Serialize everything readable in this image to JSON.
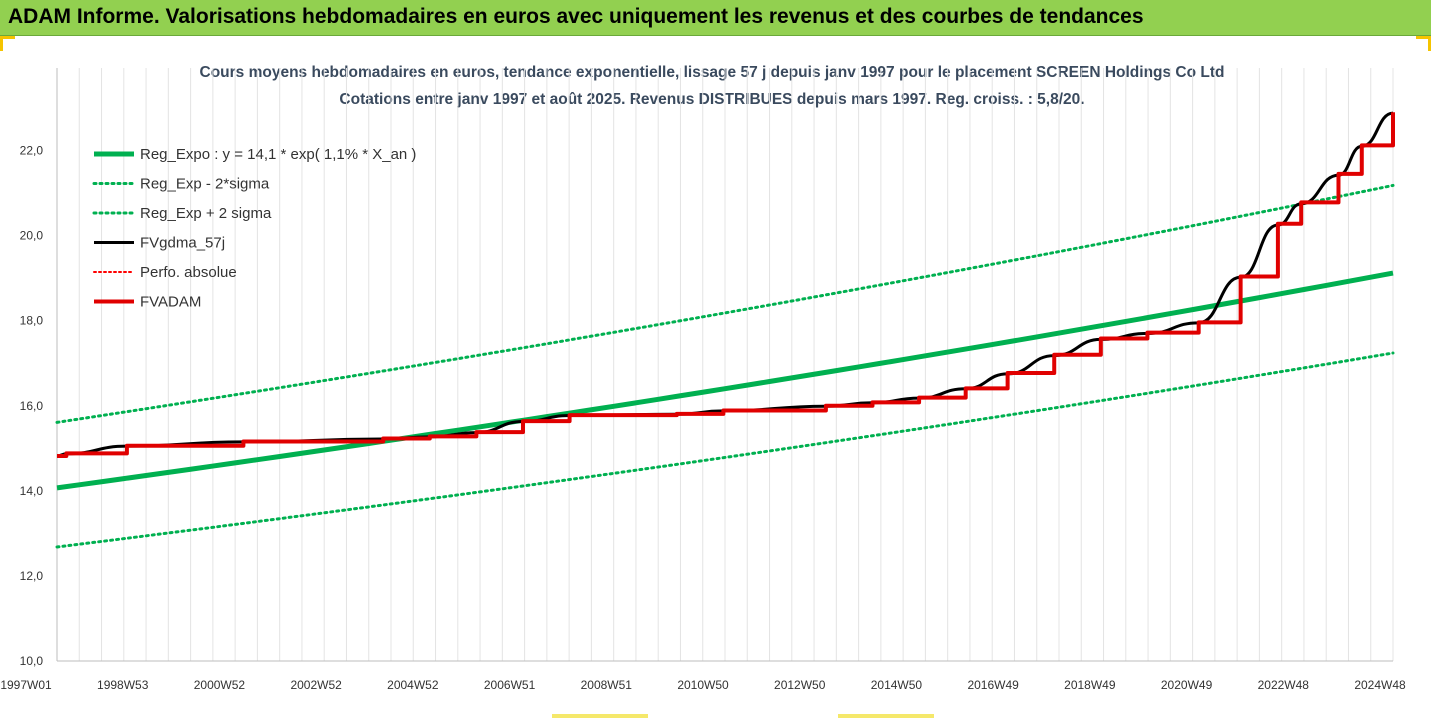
{
  "header": {
    "title": "ADAM Informe. Valorisations hebdomadaires en euros avec uniquement les revenus et des courbes de tendances"
  },
  "chart_data": {
    "type": "line",
    "title": "Cours moyens hebdomadaires en euros, tendance exponentielle, lissage 57 j depuis janv 1997 pour le placement SCREEN Holdings Co Ltd",
    "subtitle": "Cotations entre janv 1997 et août 2025.  Revenus DISTRIBUES depuis mars 1997. Reg. croiss. : 5,8/20.",
    "xlabel": "",
    "ylabel": "",
    "ylim": [
      10,
      23
    ],
    "xlim": [
      1997.0,
      2025.67
    ],
    "grid": {
      "horizontal": false,
      "vertical": true
    },
    "legend_position": "top-left",
    "y_ticks": [
      "10,0",
      "12,0",
      "14,0",
      "16,0",
      "18,0",
      "20,0",
      "22,0"
    ],
    "x_ticks": [
      "1997W01",
      "1998W53",
      "2000W52",
      "2002W52",
      "2004W52",
      "2006W51",
      "2008W51",
      "2010W50",
      "2012W50",
      "2014W50",
      "2016W49",
      "2018W49",
      "2020W49",
      "2022W48",
      "2024W48"
    ],
    "series": [
      {
        "name": "Reg_Expo : y = 14,1 * exp( 1,1% *  X_an )",
        "color": "#00b050",
        "style": "solid",
        "x": [
          1997.0,
          2025.67
        ],
        "values": [
          14.07,
          19.12
        ]
      },
      {
        "name": "Reg_Exp - 2*sigma",
        "color": "#00b050",
        "style": "dotted",
        "x": [
          1997.0,
          2025.67
        ],
        "values": [
          12.68,
          17.24
        ]
      },
      {
        "name": "Reg_Exp + 2 sigma",
        "color": "#00b050",
        "style": "dotted",
        "x": [
          1997.0,
          2025.67
        ],
        "values": [
          15.61,
          21.18
        ]
      },
      {
        "name": "FVgdma_57j",
        "color": "#000000",
        "style": "smooth",
        "x": [
          1997.0,
          1997.2,
          1998.5,
          2001.0,
          2004.0,
          2005.0,
          2006.0,
          2007.0,
          2008.0,
          2010.3,
          2011.3,
          2013.5,
          2014.5,
          2015.5,
          2016.5,
          2017.4,
          2018.4,
          2019.4,
          2020.4,
          2021.5,
          2022.4,
          2023.2,
          2023.7,
          2024.5,
          2025.0,
          2025.67
        ],
        "values": [
          14.82,
          14.87,
          15.05,
          15.15,
          15.22,
          15.27,
          15.37,
          15.63,
          15.77,
          15.8,
          15.88,
          15.99,
          16.07,
          16.18,
          16.4,
          16.75,
          17.18,
          17.56,
          17.7,
          17.95,
          19.02,
          20.25,
          20.75,
          21.42,
          22.1,
          22.88
        ]
      },
      {
        "name": "Perfo. absolue",
        "color": "#ff0000",
        "style": "dotted",
        "x": [],
        "values": []
      },
      {
        "name": "FVADAM",
        "color": "#e00000",
        "style": "step",
        "x": [
          1997.0,
          1997.2,
          1998.5,
          2001.0,
          2004.0,
          2005.0,
          2006.0,
          2007.0,
          2008.0,
          2010.3,
          2011.3,
          2013.5,
          2014.5,
          2015.5,
          2016.5,
          2017.4,
          2018.4,
          2019.4,
          2020.4,
          2021.5,
          2022.4,
          2023.2,
          2023.7,
          2024.5,
          2025.0,
          2025.67
        ],
        "values": [
          14.82,
          14.88,
          15.06,
          15.16,
          15.23,
          15.28,
          15.38,
          15.64,
          15.78,
          15.81,
          15.89,
          16.0,
          16.08,
          16.19,
          16.41,
          16.77,
          17.2,
          17.58,
          17.72,
          17.96,
          19.04,
          20.28,
          20.78,
          21.45,
          22.12,
          22.9
        ]
      }
    ]
  }
}
